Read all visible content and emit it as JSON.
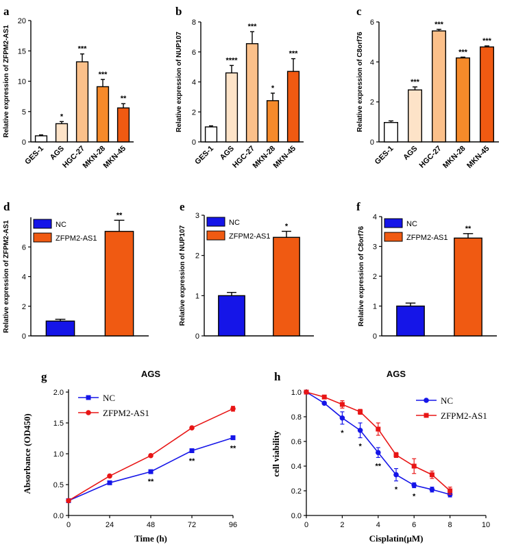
{
  "chart_data": [
    {
      "panel": "a",
      "type": "bar",
      "categories": [
        "GES-1",
        "AGS",
        "HGC-27",
        "MKN-28",
        "MKN-45"
      ],
      "values": [
        1.0,
        3.0,
        13.2,
        9.1,
        5.6
      ],
      "errors": [
        0.15,
        0.35,
        1.3,
        1.2,
        0.7
      ],
      "significance": [
        "",
        "*",
        "***",
        "***",
        "**"
      ],
      "colors": [
        "#ffffff",
        "#fde3c8",
        "#fbc08a",
        "#f68a2a",
        "#f05a12"
      ],
      "ylabel": "Relative expression of ZFPM2-AS1",
      "ylim": [
        0,
        20
      ],
      "yticks": [
        0,
        5,
        10,
        15,
        20
      ]
    },
    {
      "panel": "b",
      "type": "bar",
      "categories": [
        "GES-1",
        "AGS",
        "HGC-27",
        "MKN-28",
        "MKN-45"
      ],
      "values": [
        1.0,
        4.6,
        6.55,
        2.75,
        4.7
      ],
      "errors": [
        0.07,
        0.5,
        0.8,
        0.5,
        0.85
      ],
      "significance": [
        "",
        "****",
        "***",
        "*",
        "***"
      ],
      "colors": [
        "#ffffff",
        "#fde3c8",
        "#fbc08a",
        "#f68a2a",
        "#f05a12"
      ],
      "ylabel": "Relative expression of NUP107",
      "ylim": [
        0,
        8
      ],
      "yticks": [
        0,
        2,
        4,
        6,
        8
      ]
    },
    {
      "panel": "c",
      "type": "bar",
      "categories": [
        "GES-1",
        "AGS",
        "HGC-27",
        "MKN-28",
        "MKN-45"
      ],
      "values": [
        0.97,
        2.6,
        5.55,
        4.2,
        4.75
      ],
      "errors": [
        0.08,
        0.15,
        0.08,
        0.04,
        0.05
      ],
      "significance": [
        "",
        "***",
        "***",
        "***",
        "***"
      ],
      "colors": [
        "#ffffff",
        "#fde3c8",
        "#fbc08a",
        "#f68a2a",
        "#f05a12"
      ],
      "ylabel": "Relative expression of C8orf76",
      "ylim": [
        0,
        6
      ],
      "yticks": [
        0,
        2,
        4,
        6
      ]
    },
    {
      "panel": "d",
      "type": "bar",
      "categories": [
        "NC",
        "ZFPM2-AS1"
      ],
      "values": [
        1.0,
        7.05
      ],
      "errors": [
        0.12,
        0.75
      ],
      "significance": [
        "",
        "**"
      ],
      "colors": [
        "#1515e8",
        "#f05a12"
      ],
      "legend": [
        "NC",
        "ZFPM2-AS1"
      ],
      "ylabel": "Relative expression of ZFPM2-AS1",
      "ylim": [
        0,
        8
      ],
      "yticks": [
        0,
        2,
        4,
        6
      ]
    },
    {
      "panel": "e",
      "type": "bar",
      "categories": [
        "NC",
        "ZFPM2-AS1"
      ],
      "values": [
        1.0,
        2.45
      ],
      "errors": [
        0.08,
        0.15
      ],
      "significance": [
        "",
        "*"
      ],
      "colors": [
        "#1515e8",
        "#f05a12"
      ],
      "legend": [
        "NC",
        "ZFPM2-AS1"
      ],
      "ylabel": "Relative expression of NUP107",
      "ylim": [
        0,
        3
      ],
      "yticks": [
        0,
        1,
        2,
        3
      ]
    },
    {
      "panel": "f",
      "type": "bar",
      "categories": [
        "NC",
        "ZFPM2-AS1"
      ],
      "values": [
        1.0,
        3.28
      ],
      "errors": [
        0.1,
        0.15
      ],
      "significance": [
        "",
        "**"
      ],
      "colors": [
        "#1515e8",
        "#f05a12"
      ],
      "legend": [
        "NC",
        "ZFPM2-AS1"
      ],
      "ylabel": "Relative expression of C8orf76",
      "ylim": [
        0,
        4
      ],
      "yticks": [
        0,
        1,
        2,
        3,
        4
      ]
    },
    {
      "panel": "g",
      "type": "line",
      "title": "AGS",
      "xlabel": "Time (h)",
      "ylabel": "Absorbance (OD450)",
      "x": [
        0,
        24,
        48,
        72,
        96
      ],
      "xlim": [
        0,
        96
      ],
      "xticks": [
        0,
        24,
        48,
        72,
        96
      ],
      "ylim": [
        0,
        2.0
      ],
      "yticks": [
        "0.0",
        "0.5",
        "1.0",
        "1.5",
        "2.0"
      ],
      "series": [
        {
          "name": "NC",
          "color": "#1515e8",
          "marker": "square",
          "values": [
            0.24,
            0.53,
            0.71,
            1.05,
            1.26
          ],
          "errors": [
            0.02,
            0.02,
            0.02,
            0.03,
            0.03
          ]
        },
        {
          "name": "ZFPM2-AS1",
          "color": "#e81515",
          "marker": "circle",
          "values": [
            0.24,
            0.64,
            0.97,
            1.42,
            1.73
          ],
          "errors": [
            0.02,
            0.02,
            0.02,
            0.02,
            0.04
          ]
        }
      ],
      "significance": [
        {
          "x": 48,
          "label": "**"
        },
        {
          "x": 72,
          "label": "**"
        },
        {
          "x": 96,
          "label": "**"
        }
      ]
    },
    {
      "panel": "h",
      "type": "line",
      "title": "AGS",
      "xlabel": "Cisplatin(μM)",
      "ylabel": "cell viability",
      "x": [
        0,
        1,
        2,
        3,
        4,
        5,
        6,
        7,
        8
      ],
      "xlim": [
        0,
        10
      ],
      "xticks": [
        0,
        2,
        4,
        6,
        8,
        10
      ],
      "ylim": [
        0,
        1.0
      ],
      "yticks": [
        "0.0",
        "0.2",
        "0.4",
        "0.6",
        "0.8",
        "1.0"
      ],
      "series": [
        {
          "name": "NC",
          "color": "#1515e8",
          "marker": "circle",
          "values": [
            1.0,
            0.91,
            0.79,
            0.69,
            0.51,
            0.33,
            0.245,
            0.21,
            0.17
          ],
          "errors": [
            0.01,
            0.01,
            0.05,
            0.06,
            0.04,
            0.05,
            0.02,
            0.02,
            0.02
          ]
        },
        {
          "name": "ZFPM2-AS1",
          "color": "#e81515",
          "marker": "square",
          "values": [
            1.0,
            0.96,
            0.9,
            0.84,
            0.7,
            0.49,
            0.4,
            0.33,
            0.2
          ],
          "errors": [
            0.01,
            0.01,
            0.03,
            0.02,
            0.05,
            0.02,
            0.06,
            0.03,
            0.03
          ]
        }
      ],
      "significance": [
        {
          "x": 2,
          "label": "*"
        },
        {
          "x": 3,
          "label": "*"
        },
        {
          "x": 4,
          "label": "**"
        },
        {
          "x": 5,
          "label": "*"
        },
        {
          "x": 6,
          "label": "*"
        }
      ]
    }
  ]
}
